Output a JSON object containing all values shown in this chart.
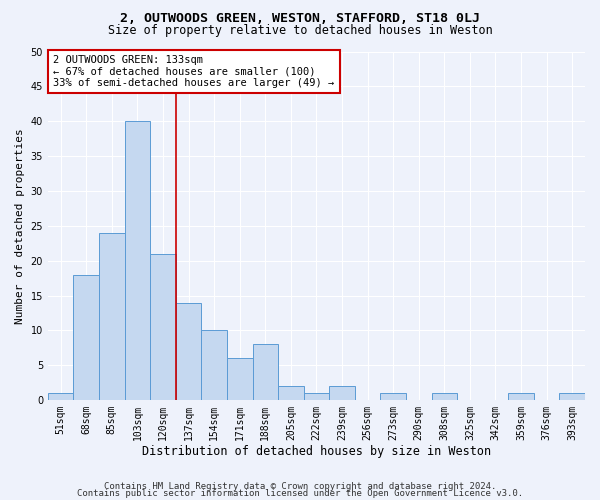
{
  "title": "2, OUTWOODS GREEN, WESTON, STAFFORD, ST18 0LJ",
  "subtitle": "Size of property relative to detached houses in Weston",
  "xlabel": "Distribution of detached houses by size in Weston",
  "ylabel": "Number of detached properties",
  "categories": [
    "51sqm",
    "68sqm",
    "85sqm",
    "103sqm",
    "120sqm",
    "137sqm",
    "154sqm",
    "171sqm",
    "188sqm",
    "205sqm",
    "222sqm",
    "239sqm",
    "256sqm",
    "273sqm",
    "290sqm",
    "308sqm",
    "325sqm",
    "342sqm",
    "359sqm",
    "376sqm",
    "393sqm"
  ],
  "values": [
    1,
    18,
    24,
    40,
    21,
    14,
    10,
    6,
    8,
    2,
    1,
    2,
    0,
    1,
    0,
    1,
    0,
    0,
    1,
    0,
    1
  ],
  "bar_color": "#c5d8f0",
  "bar_edge_color": "#5b9bd5",
  "vline_color": "#cc0000",
  "annotation_text": "2 OUTWOODS GREEN: 133sqm\n← 67% of detached houses are smaller (100)\n33% of semi-detached houses are larger (49) →",
  "annotation_box_facecolor": "#ffffff",
  "annotation_box_edgecolor": "#cc0000",
  "ylim": [
    0,
    50
  ],
  "yticks": [
    0,
    5,
    10,
    15,
    20,
    25,
    30,
    35,
    40,
    45,
    50
  ],
  "footer1": "Contains HM Land Registry data © Crown copyright and database right 2024.",
  "footer2": "Contains public sector information licensed under the Open Government Licence v3.0.",
  "background_color": "#eef2fb",
  "grid_color": "#ffffff",
  "title_fontsize": 9.5,
  "subtitle_fontsize": 8.5,
  "ylabel_fontsize": 8,
  "xlabel_fontsize": 8.5,
  "tick_fontsize": 7,
  "annotation_fontsize": 7.5,
  "footer_fontsize": 6.5
}
